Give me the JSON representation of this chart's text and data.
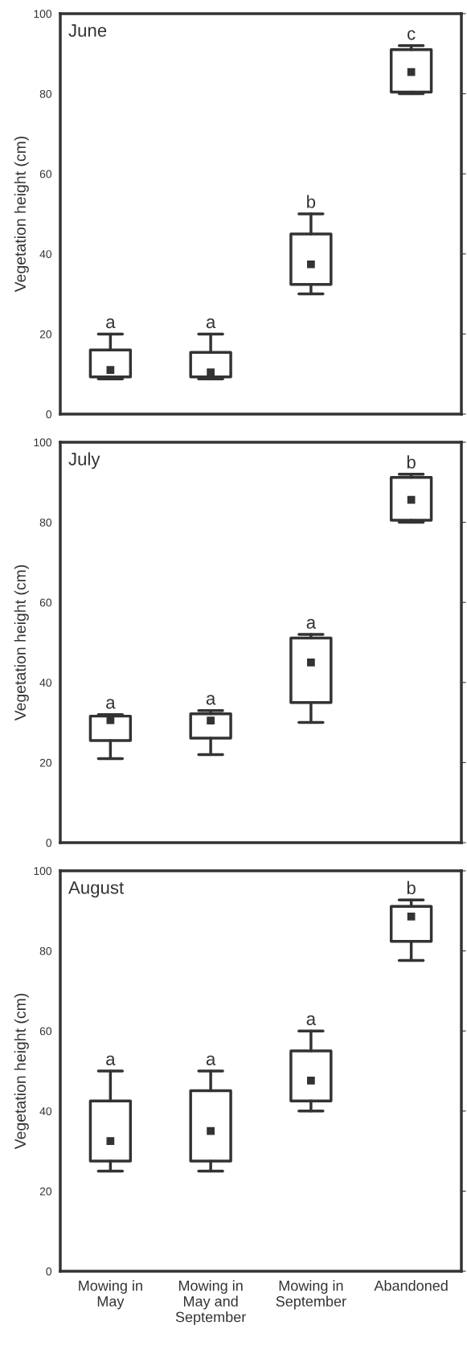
{
  "chart_data": [
    {
      "type": "box",
      "title": "June",
      "ylabel": "Vegetation height (cm)",
      "categories": [
        "Mowing in\nMay",
        "Mowing in\nMay and\nSeptember",
        "Mowing in\nSeptember",
        "Abandoned"
      ],
      "color": "#333333",
      "ylim": [
        0,
        100
      ],
      "yticks": [
        0,
        20,
        40,
        60,
        80,
        100
      ],
      "tick_labels": "y",
      "grid": false,
      "boxes": [
        {
          "low": 8.8,
          "q1": 9.3,
          "median": 11,
          "q3": 16,
          "high": 20
        },
        {
          "low": 8.8,
          "q1": 9.3,
          "median": 10.4,
          "q3": 15.4,
          "high": 20
        },
        {
          "low": 30,
          "q1": 32.4,
          "median": 37.4,
          "q3": 45,
          "high": 50
        },
        {
          "low": 80,
          "q1": 80.4,
          "median": 85.4,
          "q3": 91,
          "high": 92
        }
      ],
      "annotations": [
        {
          "text": "a",
          "x": "Mowing in\nMay",
          "y": 20
        },
        {
          "text": "a",
          "x": "Mowing in\nMay and\nSeptember",
          "y": 20
        },
        {
          "text": "b",
          "x": "Mowing in\nSeptember",
          "y": 50
        },
        {
          "text": "c",
          "x": "Abandoned",
          "y": 92
        }
      ]
    },
    {
      "type": "box",
      "title": "July",
      "ylabel": "Vegetation height (cm)",
      "categories": [
        "Mowing in\nMay",
        "Mowing in\nMay and\nSeptember",
        "Mowing in\nSeptember",
        "Abandoned"
      ],
      "color": "#333333",
      "ylim": [
        0,
        100
      ],
      "yticks": [
        0,
        20,
        40,
        60,
        80,
        100
      ],
      "tick_labels": "y",
      "grid": false,
      "boxes": [
        {
          "low": 21,
          "q1": 25.5,
          "median": 30.6,
          "q3": 31.6,
          "high": 32
        },
        {
          "low": 22,
          "q1": 26.1,
          "median": 30.5,
          "q3": 32.2,
          "high": 33
        },
        {
          "low": 30,
          "q1": 35,
          "median": 45,
          "q3": 51.1,
          "high": 52
        },
        {
          "low": 80,
          "q1": 80.5,
          "median": 85.6,
          "q3": 91.2,
          "high": 92
        }
      ],
      "annotations": [
        {
          "text": "a",
          "x": "Mowing in\nMay",
          "y": 32
        },
        {
          "text": "a",
          "x": "Mowing in\nMay and\nSeptember",
          "y": 33
        },
        {
          "text": "a",
          "x": "Mowing in\nSeptember",
          "y": 52
        },
        {
          "text": "b",
          "x": "Abandoned",
          "y": 92
        }
      ]
    },
    {
      "type": "box",
      "title": "August",
      "ylabel": "Vegetation height (cm)",
      "categories": [
        "Mowing in\nMay",
        "Mowing in\nMay and\nSeptember",
        "Mowing in\nSeptember",
        "Abandoned"
      ],
      "color": "#333333",
      "ylim": [
        0,
        100
      ],
      "yticks": [
        0,
        20,
        40,
        60,
        80,
        100
      ],
      "grid": false,
      "boxes": [
        {
          "low": 25,
          "q1": 27.5,
          "median": 32.5,
          "q3": 42.5,
          "high": 50
        },
        {
          "low": 25,
          "q1": 27.5,
          "median": 35,
          "q3": 45.1,
          "high": 50
        },
        {
          "low": 40,
          "q1": 42.5,
          "median": 47.6,
          "q3": 55,
          "high": 60
        },
        {
          "low": 77.6,
          "q1": 82.4,
          "median": 88.6,
          "q3": 91.1,
          "high": 92.7
        }
      ],
      "annotations": [
        {
          "text": "a",
          "x": "Mowing in\nMay",
          "y": 50
        },
        {
          "text": "a",
          "x": "Mowing in\nMay and\nSeptember",
          "y": 50
        },
        {
          "text": "a",
          "x": "Mowing in\nSeptember",
          "y": 60
        },
        {
          "text": "b",
          "x": "Abandoned",
          "y": 92.7
        }
      ]
    }
  ]
}
